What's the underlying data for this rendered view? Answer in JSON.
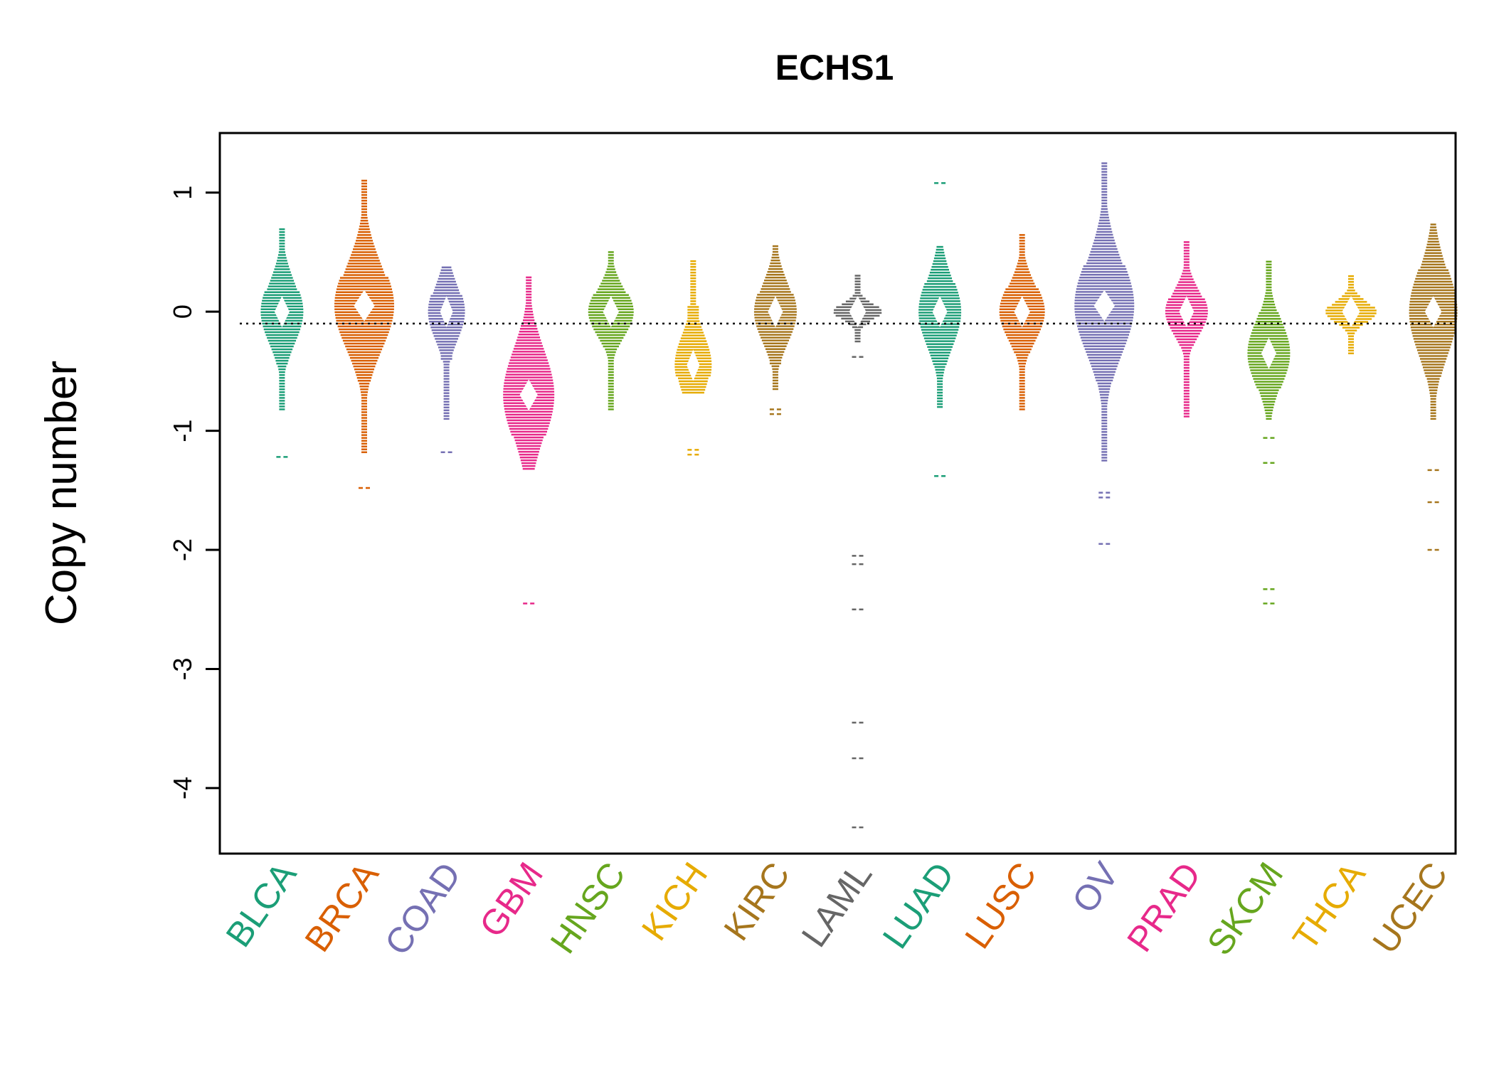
{
  "chart_data": {
    "type": "beeswarm",
    "title": "ECHS1",
    "xlabel": "",
    "ylabel": "Copy number",
    "ylim": [
      -4.55,
      1.5
    ],
    "yticks": [
      1,
      0,
      -1,
      -2,
      -3,
      -4
    ],
    "ytick_labels": [
      "1",
      "0",
      "-1",
      "-2",
      "-3",
      "-4"
    ],
    "reference_line": -0.1,
    "grid": false,
    "legend": "none",
    "categories": [
      "BLCA",
      "BRCA",
      "COAD",
      "GBM",
      "HNSC",
      "KICH",
      "KIRC",
      "LAML",
      "LUAD",
      "LUSC",
      "OV",
      "PRAD",
      "SKCM",
      "THCA",
      "UCEC"
    ],
    "series": [
      {
        "category": "BLCA",
        "color": "#1B9E77",
        "min": -0.82,
        "max": 0.7,
        "q1": -0.45,
        "median": 0.0,
        "q3": 0.18,
        "spread": 30,
        "outliers": [
          -1.22
        ]
      },
      {
        "category": "BRCA",
        "color": "#D95F02",
        "min": -1.18,
        "max": 1.12,
        "q1": -0.6,
        "median": 0.05,
        "q3": 0.3,
        "spread": 42,
        "outliers": [
          -1.48
        ]
      },
      {
        "category": "COAD",
        "color": "#7570B3",
        "min": -0.9,
        "max": 0.38,
        "q1": -0.4,
        "median": 0.0,
        "q3": 0.15,
        "spread": 26,
        "outliers": [
          -1.18
        ]
      },
      {
        "category": "GBM",
        "color": "#E7298A",
        "min": -1.32,
        "max": 0.3,
        "q1": -1.05,
        "median": -0.7,
        "q3": -0.1,
        "spread": 36,
        "outliers": [
          -2.45
        ]
      },
      {
        "category": "HNSC",
        "color": "#66A61E",
        "min": -0.82,
        "max": 0.52,
        "q1": -0.3,
        "median": 0.0,
        "q3": 0.15,
        "spread": 32,
        "outliers": []
      },
      {
        "category": "KICH",
        "color": "#E6AB02",
        "min": -0.68,
        "max": 0.44,
        "q1": -0.55,
        "median": -0.45,
        "q3": 0.05,
        "spread": 26,
        "outliers": [
          -1.16,
          -1.2
        ]
      },
      {
        "category": "KIRC",
        "color": "#A6761D",
        "min": -0.65,
        "max": 0.55,
        "q1": -0.45,
        "median": 0.0,
        "q3": 0.15,
        "spread": 30,
        "outliers": [
          -0.82,
          -0.86
        ]
      },
      {
        "category": "LAML",
        "color": "#666666",
        "min": -0.25,
        "max": 0.32,
        "q1": -0.05,
        "median": 0.0,
        "q3": 0.05,
        "spread": 34,
        "outliers": [
          -0.38,
          -2.05,
          -2.12,
          -2.5,
          -3.45,
          -3.75,
          -4.33
        ]
      },
      {
        "category": "LUAD",
        "color": "#1B9E77",
        "min": -0.8,
        "max": 0.55,
        "q1": -0.45,
        "median": 0.0,
        "q3": 0.25,
        "spread": 30,
        "outliers": [
          1.08,
          -1.38
        ]
      },
      {
        "category": "LUSC",
        "color": "#D95F02",
        "min": -0.82,
        "max": 0.65,
        "q1": -0.35,
        "median": 0.0,
        "q3": 0.2,
        "spread": 32,
        "outliers": []
      },
      {
        "category": "OV",
        "color": "#7570B3",
        "min": -1.25,
        "max": 1.25,
        "q1": -0.6,
        "median": 0.05,
        "q3": 0.4,
        "spread": 42,
        "outliers": [
          -1.52,
          -1.56,
          -1.95
        ]
      },
      {
        "category": "PRAD",
        "color": "#E7298A",
        "min": -0.88,
        "max": 0.6,
        "q1": -0.3,
        "median": 0.0,
        "q3": 0.12,
        "spread": 30,
        "outliers": []
      },
      {
        "category": "SKCM",
        "color": "#66A61E",
        "min": -0.9,
        "max": 0.42,
        "q1": -0.65,
        "median": -0.35,
        "q3": 0.0,
        "spread": 30,
        "outliers": [
          -1.06,
          -1.27,
          -2.33,
          -2.45
        ]
      },
      {
        "category": "THCA",
        "color": "#E6AB02",
        "min": -0.35,
        "max": 0.3,
        "q1": -0.1,
        "median": 0.0,
        "q3": 0.05,
        "spread": 36,
        "outliers": []
      },
      {
        "category": "UCEC",
        "color": "#A6761D",
        "min": -0.9,
        "max": 0.75,
        "q1": -0.55,
        "median": 0.0,
        "q3": 0.35,
        "spread": 34,
        "outliers": [
          -1.33,
          -1.6,
          -2.0
        ]
      }
    ]
  }
}
